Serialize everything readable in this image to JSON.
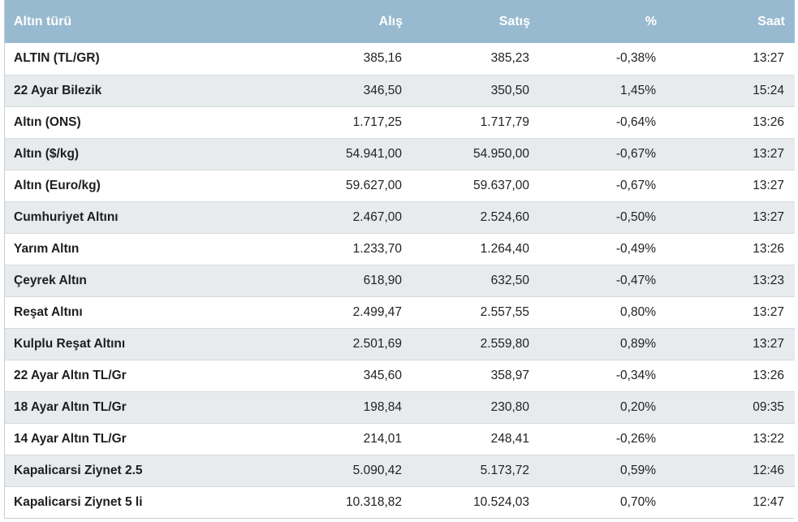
{
  "table": {
    "headers": {
      "name": "Altın türü",
      "buy": "Alış",
      "sell": "Satış",
      "pct": "%",
      "time": "Saat"
    },
    "rows": [
      {
        "name": "ALTIN (TL/GR)",
        "buy": "385,16",
        "sell": "385,23",
        "pct": "-0,38%",
        "time": "13:27"
      },
      {
        "name": "22 Ayar Bilezik",
        "buy": "346,50",
        "sell": "350,50",
        "pct": "1,45%",
        "time": "15:24"
      },
      {
        "name": "Altın (ONS)",
        "buy": "1.717,25",
        "sell": "1.717,79",
        "pct": "-0,64%",
        "time": "13:26"
      },
      {
        "name": "Altın ($/kg)",
        "buy": "54.941,00",
        "sell": "54.950,00",
        "pct": "-0,67%",
        "time": "13:27"
      },
      {
        "name": "Altın (Euro/kg)",
        "buy": "59.627,00",
        "sell": "59.637,00",
        "pct": "-0,67%",
        "time": "13:27"
      },
      {
        "name": "Cumhuriyet Altını",
        "buy": "2.467,00",
        "sell": "2.524,60",
        "pct": "-0,50%",
        "time": "13:27"
      },
      {
        "name": "Yarım Altın",
        "buy": "1.233,70",
        "sell": "1.264,40",
        "pct": "-0,49%",
        "time": "13:26"
      },
      {
        "name": "Çeyrek Altın",
        "buy": "618,90",
        "sell": "632,50",
        "pct": "-0,47%",
        "time": "13:23"
      },
      {
        "name": "Reşat Altını",
        "buy": "2.499,47",
        "sell": "2.557,55",
        "pct": "0,80%",
        "time": "13:27"
      },
      {
        "name": "Kulplu Reşat Altını",
        "buy": "2.501,69",
        "sell": "2.559,80",
        "pct": "0,89%",
        "time": "13:27"
      },
      {
        "name": "22 Ayar Altın TL/Gr",
        "buy": "345,60",
        "sell": "358,97",
        "pct": "-0,34%",
        "time": "13:26"
      },
      {
        "name": "18 Ayar Altın TL/Gr",
        "buy": "198,84",
        "sell": "230,80",
        "pct": "0,20%",
        "time": "09:35"
      },
      {
        "name": "14 Ayar Altın TL/Gr",
        "buy": "214,01",
        "sell": "248,41",
        "pct": "-0,26%",
        "time": "13:22"
      },
      {
        "name": "Kapalicarsi Ziynet 2.5",
        "buy": "5.090,42",
        "sell": "5.173,72",
        "pct": "0,59%",
        "time": "12:46"
      },
      {
        "name": "Kapalicarsi Ziynet 5 li",
        "buy": "10.318,82",
        "sell": "10.524,03",
        "pct": "0,70%",
        "time": "12:47"
      }
    ]
  },
  "colors": {
    "header_bg": "#98bad0",
    "header_text": "#ffffff",
    "row_alt_bg": "#e7ebee",
    "row_bg": "#ffffff"
  }
}
